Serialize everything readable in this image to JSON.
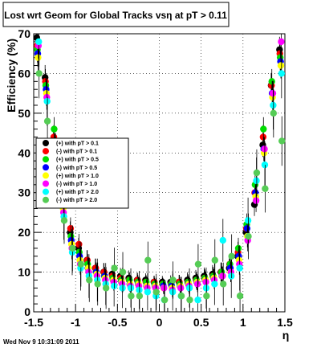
{
  "chart_data": {
    "type": "scatter",
    "title": "Lost wrt Geom for Global Tracks vsη at pT > 0.11",
    "xlabel": "η",
    "ylabel": "Efficiency (%)",
    "xlim": [
      -1.5,
      1.5
    ],
    "ylim": [
      0,
      70
    ],
    "xticks": [
      -1.5,
      -1,
      -0.5,
      0,
      0.5,
      1,
      1.5
    ],
    "xtick_labels": [
      "-1.5",
      "-1",
      "-0.5",
      "0",
      "0.5",
      "1",
      "1.5"
    ],
    "yticks": [
      0,
      10,
      20,
      30,
      40,
      50,
      60,
      70
    ],
    "ytick_labels": [
      "0",
      "10",
      "20",
      "30",
      "40",
      "50",
      "60",
      "70"
    ],
    "grid": true,
    "legend_position": "left-middle",
    "footer": "Wed Nov  9 10:31:09 2011",
    "series": [
      {
        "name": "(+) with pT > 0.1",
        "color": "#000000",
        "x": [
          -1.45,
          -1.35,
          -1.25,
          -1.15,
          -1.05,
          -0.95,
          -0.85,
          -0.75,
          -0.65,
          -0.55,
          -0.45,
          -0.35,
          -0.25,
          -0.15,
          -0.05,
          0.05,
          0.15,
          0.25,
          0.35,
          0.45,
          0.55,
          0.65,
          0.75,
          0.85,
          0.95,
          1.05,
          1.15,
          1.25,
          1.35,
          1.45
        ],
        "y": [
          69,
          59,
          43,
          27,
          20,
          16,
          13,
          11,
          10,
          9.5,
          9,
          8.5,
          8,
          8,
          7.5,
          7.5,
          7.5,
          7.5,
          8,
          8.5,
          9,
          9.5,
          10,
          11,
          14,
          20,
          27,
          42,
          57,
          66
        ]
      },
      {
        "name": "(-) with pT > 0.1",
        "color": "#ff0000",
        "x": [
          -1.45,
          -1.35,
          -1.25,
          -1.15,
          -1.05,
          -0.95,
          -0.85,
          -0.75,
          -0.65,
          -0.55,
          -0.45,
          -0.35,
          -0.25,
          -0.15,
          -0.05,
          0.05,
          0.15,
          0.25,
          0.35,
          0.45,
          0.55,
          0.65,
          0.75,
          0.85,
          0.95,
          1.05,
          1.15,
          1.25,
          1.35,
          1.45
        ],
        "y": [
          67,
          58,
          44,
          28,
          21,
          17,
          13,
          11,
          10,
          9,
          8.5,
          8,
          8,
          7.5,
          7.5,
          7,
          7,
          7.5,
          7.5,
          8,
          8.5,
          9,
          10,
          12,
          15,
          21,
          30,
          44,
          57,
          65
        ]
      },
      {
        "name": "(+) with pT > 0.5",
        "color": "#00dd00",
        "x": [
          -1.45,
          -1.35,
          -1.25,
          -1.15,
          -1.05,
          -0.95,
          -0.85,
          -0.75,
          -0.65,
          -0.55,
          -0.45,
          -0.35,
          -0.25,
          -0.15,
          -0.05,
          0.05,
          0.15,
          0.25,
          0.35,
          0.45,
          0.55,
          0.65,
          0.75,
          0.85,
          0.95,
          1.05,
          1.15,
          1.25,
          1.35,
          1.45
        ],
        "y": [
          66,
          57,
          46,
          30,
          19,
          15,
          12,
          10,
          9,
          8.5,
          8,
          8,
          7.5,
          7.5,
          7,
          7,
          7,
          7,
          7.5,
          8,
          8.5,
          9,
          10,
          12,
          16,
          22,
          32,
          46,
          58,
          64
        ]
      },
      {
        "name": "(-) with pT > 0.5",
        "color": "#0000ff",
        "x": [
          -1.45,
          -1.35,
          -1.25,
          -1.15,
          -1.05,
          -0.95,
          -0.85,
          -0.75,
          -0.65,
          -0.55,
          -0.45,
          -0.35,
          -0.25,
          -0.15,
          -0.05,
          0.05,
          0.15,
          0.25,
          0.35,
          0.45,
          0.55,
          0.65,
          0.75,
          0.85,
          0.95,
          1.05,
          1.15,
          1.25,
          1.35,
          1.45
        ],
        "y": [
          65,
          56,
          41,
          27,
          18,
          14,
          11,
          10,
          9,
          8,
          7.5,
          7,
          7,
          6.5,
          6.5,
          6.5,
          6.5,
          6.5,
          7,
          7.5,
          8,
          8.5,
          9,
          11,
          14,
          21,
          30,
          41,
          55,
          63
        ]
      },
      {
        "name": "(+) with pT > 1.0",
        "color": "#ffff00",
        "x": [
          -1.45,
          -1.35,
          -1.25,
          -1.15,
          -1.05,
          -0.95,
          -0.85,
          -0.75,
          -0.65,
          -0.55,
          -0.45,
          -0.35,
          -0.25,
          -0.15,
          -0.05,
          0.05,
          0.15,
          0.25,
          0.35,
          0.45,
          0.55,
          0.65,
          0.75,
          0.85,
          0.95,
          1.05,
          1.15,
          1.25,
          1.35,
          1.45
        ],
        "y": [
          64,
          55,
          40,
          26,
          17,
          13,
          11,
          9.5,
          8.5,
          8,
          7.5,
          7,
          7,
          6.5,
          6.5,
          6,
          6,
          6.5,
          7,
          7.5,
          8,
          8.5,
          9,
          10,
          13,
          19,
          29,
          40,
          54,
          62
        ]
      },
      {
        "name": "(-) with pT > 1.0",
        "color": "#ff00ff",
        "x": [
          -1.45,
          -1.35,
          -1.25,
          -1.15,
          -1.05,
          -0.95,
          -0.85,
          -0.75,
          -0.65,
          -0.55,
          -0.45,
          -0.35,
          -0.25,
          -0.15,
          -0.05,
          0.05,
          0.15,
          0.25,
          0.35,
          0.45,
          0.55,
          0.65,
          0.75,
          0.85,
          0.95,
          1.05,
          1.15,
          1.25,
          1.35,
          1.45
        ],
        "y": [
          67,
          54,
          42,
          25,
          16,
          12,
          10,
          9,
          8,
          7.5,
          7,
          6.5,
          6.5,
          6,
          6,
          6,
          5.5,
          6,
          6.5,
          7,
          7.5,
          8,
          9,
          10,
          12,
          18,
          28,
          41,
          55,
          68
        ]
      },
      {
        "name": "(+) with pT > 2.0",
        "color": "#00ffff",
        "x": [
          -1.45,
          -1.35,
          -1.25,
          -1.15,
          -1.05,
          -0.95,
          -0.85,
          -0.75,
          -0.65,
          -0.55,
          -0.45,
          -0.35,
          -0.25,
          -0.15,
          -0.05,
          0.05,
          0.15,
          0.25,
          0.35,
          0.45,
          0.55,
          0.65,
          0.75,
          0.85,
          0.95,
          1.05,
          1.15,
          1.25,
          1.35,
          1.45
        ],
        "y": [
          68,
          53,
          39,
          24,
          15,
          11,
          9,
          8,
          7,
          6.5,
          6,
          6,
          5.5,
          5,
          4,
          3,
          5,
          4,
          6,
          3,
          6,
          7,
          18,
          9,
          11,
          23,
          33,
          37,
          52,
          60
        ]
      },
      {
        "name": "(-) with pT > 2.0",
        "color": "#55cc55",
        "x": [
          -1.45,
          -1.35,
          -1.25,
          -1.15,
          -1.05,
          -0.95,
          -0.85,
          -0.75,
          -0.65,
          -0.55,
          -0.45,
          -0.35,
          -0.25,
          -0.15,
          -0.05,
          0.05,
          0.15,
          0.25,
          0.35,
          0.45,
          0.55,
          0.65,
          0.75,
          0.85,
          0.95,
          1.05,
          1.15,
          1.25,
          1.35,
          1.45
        ],
        "y": [
          60,
          48,
          38,
          23,
          16,
          12,
          8,
          7,
          6,
          11,
          10,
          4,
          4,
          13,
          5,
          3,
          8,
          4,
          3,
          12,
          4,
          13,
          7,
          14,
          4,
          19,
          35,
          31,
          50,
          43
        ]
      }
    ]
  }
}
